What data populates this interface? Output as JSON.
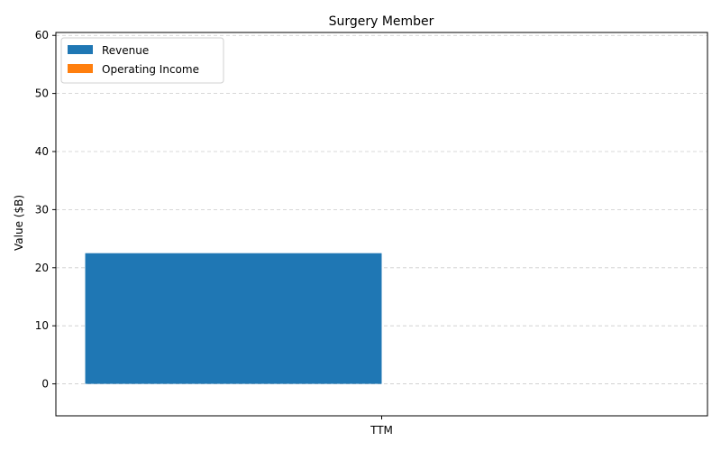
{
  "chart_data": {
    "type": "bar",
    "title": "Surgery Member",
    "xlabel": "",
    "ylabel": "Value ($B)",
    "categories": [
      "TTM"
    ],
    "series": [
      {
        "name": "Revenue",
        "values": [
          22.5
        ],
        "color": "#1f77b4"
      },
      {
        "name": "Operating Income",
        "values": [
          0
        ],
        "color": "#ff7f0e"
      }
    ],
    "ylim": [
      -5.5,
      60.5
    ],
    "yticks": [
      0,
      10,
      20,
      30,
      40,
      50,
      60
    ],
    "grid": "y-dashed",
    "legend_position": "top-left"
  }
}
